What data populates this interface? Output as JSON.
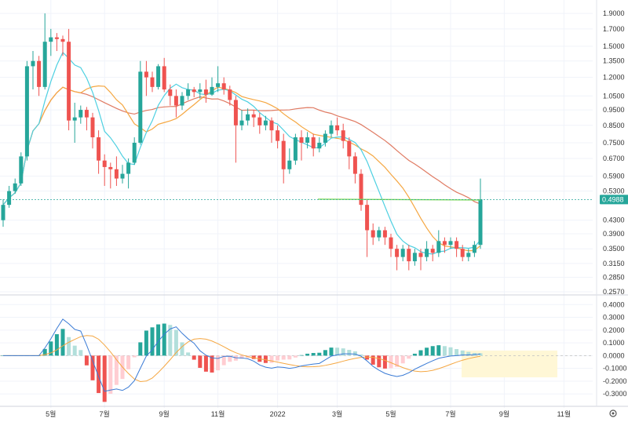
{
  "chart_data": {
    "type": "candlestick",
    "scale": "log",
    "grid": true,
    "colors": {
      "up": "#26a69a",
      "down": "#ef5350",
      "ma_fast": "#4dd0e1",
      "ma_mid": "#f5a742",
      "ma_slow": "#e07b63",
      "horizontal_line": "#7ed957",
      "price_line": "#26a69a",
      "macd": "#3a7bd5",
      "signal": "#f5a742",
      "hist_up_strong": "#26a69a",
      "hist_up_weak": "#b2dfdb",
      "hist_down_strong": "#ef5350",
      "hist_down_weak": "#ffcdd2",
      "highlight_box": "#fff7d6"
    },
    "x_tick_labels": [
      "5월",
      "7월",
      "9월",
      "11월",
      "2022",
      "3월",
      "5월",
      "7월",
      "9월",
      "11월"
    ],
    "x_tick_index": [
      8,
      17,
      27,
      36,
      46,
      56,
      65,
      75,
      84,
      94
    ],
    "y_ticks_price": [
      1.9,
      1.7,
      1.5,
      1.35,
      1.2,
      1.05,
      0.95,
      0.85,
      0.75,
      0.67,
      0.59,
      0.53,
      0.43,
      0.39,
      0.35,
      0.315,
      0.285,
      0.257
    ],
    "y_tick_labels_price": [
      "1.9000",
      "1.7000",
      "1.5000",
      "1.3500",
      "1.2000",
      "1.0500",
      "0.9500",
      "0.8500",
      "0.7500",
      "0.6700",
      "0.5900",
      "0.5300",
      "0.4300",
      "0.3900",
      "0.3500",
      "0.3150",
      "0.2850",
      "0.2570"
    ],
    "price_range": [
      0.257,
      2.0
    ],
    "current_price_label": "0.4988",
    "current_price": 0.4988,
    "y_ticks_macd": [
      0.4,
      0.3,
      0.2,
      0.1,
      0.0,
      -0.1,
      -0.2,
      -0.3
    ],
    "y_tick_labels_macd": [
      "0.4000",
      "0.3000",
      "0.2000",
      "0.1000",
      "0.0000",
      "-0.1000",
      "-0.2000",
      "-0.3000"
    ],
    "macd_range": [
      -0.36,
      0.42
    ],
    "candles": [
      [
        0.43,
        0.48,
        0.41,
        0.5
      ],
      [
        0.48,
        0.53,
        0.47,
        0.55
      ],
      [
        0.53,
        0.56,
        0.52,
        0.58
      ],
      [
        0.56,
        0.68,
        0.55,
        0.7
      ],
      [
        0.68,
        1.3,
        0.66,
        1.35
      ],
      [
        1.3,
        1.35,
        1.1,
        1.45
      ],
      [
        1.35,
        1.12,
        1.05,
        1.4
      ],
      [
        1.12,
        1.55,
        1.1,
        1.9
      ],
      [
        1.55,
        1.6,
        1.4,
        1.7
      ],
      [
        1.6,
        1.58,
        1.45,
        1.65
      ],
      [
        1.58,
        1.55,
        1.4,
        1.62
      ],
      [
        1.55,
        0.88,
        0.82,
        1.7
      ],
      [
        0.88,
        0.9,
        0.75,
        1.0
      ],
      [
        0.9,
        0.95,
        0.86,
        0.98
      ],
      [
        0.95,
        0.9,
        0.82,
        0.97
      ],
      [
        0.9,
        0.78,
        0.72,
        0.93
      ],
      [
        0.78,
        0.66,
        0.6,
        0.82
      ],
      [
        0.66,
        0.63,
        0.55,
        0.69
      ],
      [
        0.63,
        0.62,
        0.54,
        0.65
      ],
      [
        0.62,
        0.58,
        0.55,
        0.68
      ],
      [
        0.58,
        0.6,
        0.56,
        0.64
      ],
      [
        0.6,
        0.65,
        0.54,
        0.67
      ],
      [
        0.65,
        0.75,
        0.64,
        0.78
      ],
      [
        0.75,
        1.25,
        0.74,
        1.35
      ],
      [
        1.25,
        1.2,
        1.05,
        1.35
      ],
      [
        1.2,
        1.12,
        1.08,
        1.25
      ],
      [
        1.12,
        1.3,
        1.1,
        1.32
      ],
      [
        1.3,
        1.1,
        1.08,
        1.38
      ],
      [
        1.1,
        1.05,
        0.98,
        1.14
      ],
      [
        1.05,
        0.98,
        0.9,
        1.1
      ],
      [
        0.98,
        1.05,
        0.95,
        1.08
      ],
      [
        1.05,
        1.1,
        1.02,
        1.15
      ],
      [
        1.1,
        1.08,
        1.04,
        1.12
      ],
      [
        1.08,
        1.1,
        1.03,
        1.15
      ],
      [
        1.1,
        1.06,
        1.0,
        1.18
      ],
      [
        1.06,
        1.12,
        1.05,
        1.2
      ],
      [
        1.12,
        1.15,
        1.08,
        1.3
      ],
      [
        1.15,
        1.1,
        1.06,
        1.2
      ],
      [
        1.1,
        1.02,
        0.98,
        1.13
      ],
      [
        1.02,
        0.85,
        0.65,
        1.05
      ],
      [
        0.85,
        0.88,
        0.82,
        0.95
      ],
      [
        0.88,
        0.92,
        0.85,
        0.96
      ],
      [
        0.92,
        0.9,
        0.84,
        0.95
      ],
      [
        0.9,
        0.85,
        0.8,
        0.93
      ],
      [
        0.85,
        0.88,
        0.82,
        0.91
      ],
      [
        0.88,
        0.82,
        0.75,
        0.9
      ],
      [
        0.82,
        0.76,
        0.72,
        0.85
      ],
      [
        0.76,
        0.62,
        0.56,
        0.8
      ],
      [
        0.62,
        0.66,
        0.6,
        0.72
      ],
      [
        0.66,
        0.78,
        0.64,
        0.8
      ],
      [
        0.78,
        0.75,
        0.66,
        0.82
      ],
      [
        0.75,
        0.78,
        0.72,
        0.81
      ],
      [
        0.78,
        0.72,
        0.68,
        0.8
      ],
      [
        0.72,
        0.75,
        0.7,
        0.78
      ],
      [
        0.75,
        0.8,
        0.73,
        0.82
      ],
      [
        0.8,
        0.85,
        0.78,
        0.88
      ],
      [
        0.85,
        0.82,
        0.79,
        0.9
      ],
      [
        0.82,
        0.76,
        0.72,
        0.86
      ],
      [
        0.76,
        0.68,
        0.62,
        0.78
      ],
      [
        0.68,
        0.6,
        0.56,
        0.7
      ],
      [
        0.6,
        0.48,
        0.46,
        0.62
      ],
      [
        0.48,
        0.4,
        0.33,
        0.5
      ],
      [
        0.4,
        0.38,
        0.36,
        0.42
      ],
      [
        0.38,
        0.4,
        0.37,
        0.41
      ],
      [
        0.4,
        0.38,
        0.36,
        0.41
      ],
      [
        0.38,
        0.35,
        0.33,
        0.39
      ],
      [
        0.35,
        0.33,
        0.3,
        0.36
      ],
      [
        0.33,
        0.35,
        0.32,
        0.36
      ],
      [
        0.35,
        0.32,
        0.3,
        0.36
      ],
      [
        0.32,
        0.34,
        0.31,
        0.35
      ],
      [
        0.34,
        0.33,
        0.3,
        0.35
      ],
      [
        0.33,
        0.35,
        0.32,
        0.37
      ],
      [
        0.35,
        0.34,
        0.32,
        0.36
      ],
      [
        0.34,
        0.37,
        0.33,
        0.4
      ],
      [
        0.37,
        0.36,
        0.34,
        0.38
      ],
      [
        0.36,
        0.37,
        0.35,
        0.38
      ],
      [
        0.37,
        0.35,
        0.33,
        0.38
      ],
      [
        0.35,
        0.33,
        0.32,
        0.36
      ],
      [
        0.33,
        0.34,
        0.32,
        0.35
      ],
      [
        0.34,
        0.36,
        0.33,
        0.37
      ],
      [
        0.36,
        0.5,
        0.35,
        0.58
      ]
    ],
    "horizontal_line_value": 0.5,
    "horizontal_line_range": [
      50,
      80
    ]
  }
}
